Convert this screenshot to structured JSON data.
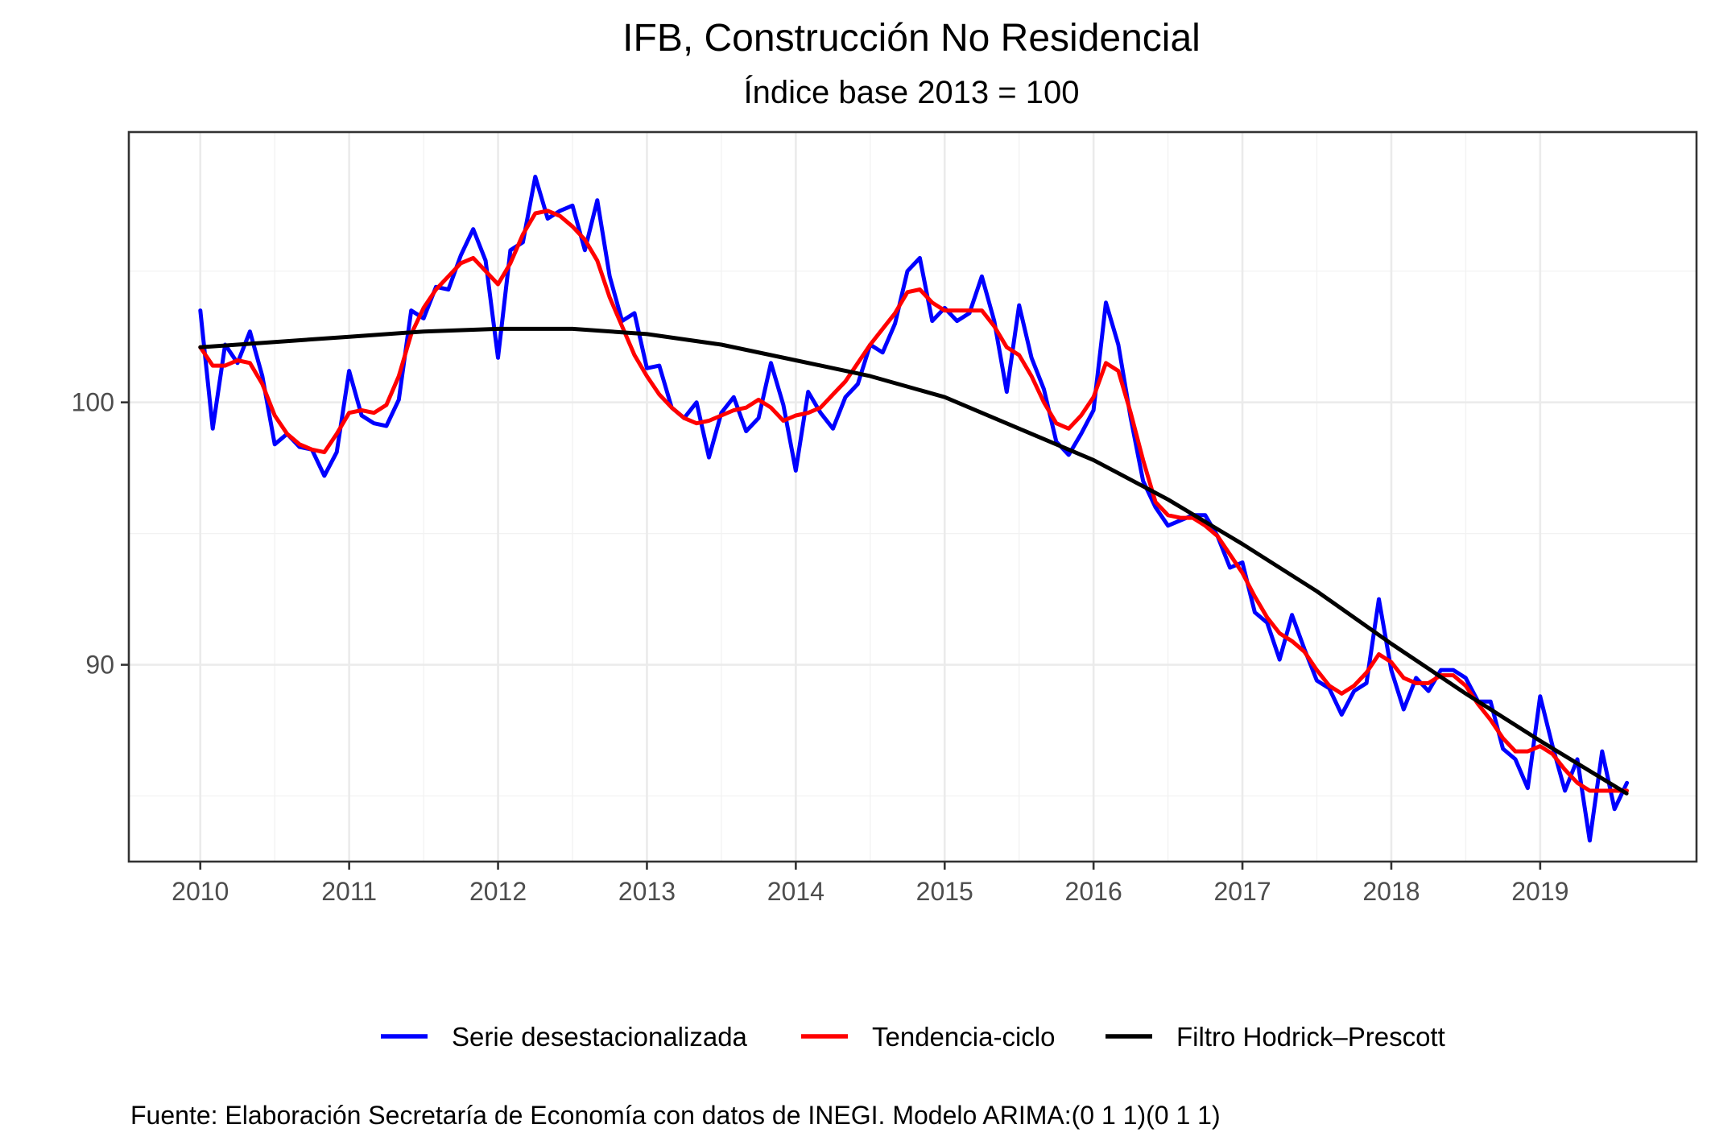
{
  "chart_data": {
    "type": "line",
    "title": "IFB, Construcción No Residencial",
    "subtitle": "Índice base 2013 = 100",
    "caption": "Fuente: Elaboración Secretaría de Economía con datos de INEGI. Modelo ARIMA:(0 1 1)(0 1 1)",
    "xlabel": "",
    "ylabel": "",
    "xlim": [
      2009.52,
      2020.05
    ],
    "ylim": [
      82.5,
      110.3
    ],
    "x_ticks": [
      2010,
      2011,
      2012,
      2013,
      2014,
      2015,
      2016,
      2017,
      2018,
      2019
    ],
    "x_tick_labels": [
      "2010",
      "2011",
      "2012",
      "2013",
      "2014",
      "2015",
      "2016",
      "2017",
      "2018",
      "2019"
    ],
    "y_ticks": [
      90,
      100
    ],
    "y_tick_labels": [
      "90",
      "100"
    ],
    "grid": true,
    "legend_position": "bottom",
    "x_start": 2010,
    "x_step": 0.08333,
    "series": [
      {
        "name": "Serie desestacionalizada",
        "color": "#0000ff",
        "values": [
          103.5,
          99.0,
          102.2,
          101.5,
          102.7,
          101.0,
          98.4,
          98.8,
          98.3,
          98.2,
          97.2,
          98.1,
          101.2,
          99.5,
          99.2,
          99.1,
          100.1,
          103.5,
          103.2,
          104.4,
          104.3,
          105.6,
          106.6,
          105.4,
          101.7,
          105.8,
          106.1,
          108.6,
          107.0,
          107.3,
          107.5,
          105.8,
          107.7,
          104.8,
          103.1,
          103.4,
          101.3,
          101.4,
          99.8,
          99.4,
          100.0,
          97.9,
          99.6,
          100.2,
          98.9,
          99.4,
          101.5,
          99.9,
          97.4,
          100.4,
          99.6,
          99.0,
          100.2,
          100.7,
          102.2,
          101.9,
          103.0,
          105.0,
          105.5,
          103.1,
          103.6,
          103.1,
          103.4,
          104.8,
          103.1,
          100.4,
          103.7,
          101.7,
          100.5,
          98.5,
          98.0,
          98.8,
          99.7,
          103.8,
          102.2,
          99.4,
          97.0,
          96.0,
          95.3,
          95.5,
          95.7,
          95.7,
          94.9,
          93.7,
          93.9,
          92.0,
          91.6,
          90.2,
          91.9,
          90.6,
          89.4,
          89.1,
          88.1,
          89.0,
          89.3,
          92.5,
          89.8,
          88.3,
          89.5,
          89.0,
          89.8,
          89.8,
          89.5,
          88.6,
          88.6,
          86.8,
          86.4,
          85.3,
          88.8,
          86.9,
          85.2,
          86.4,
          83.3,
          86.7,
          84.5,
          85.5
        ]
      },
      {
        "name": "Tendencia-ciclo",
        "color": "#ff0000",
        "values": [
          102.1,
          101.4,
          101.4,
          101.6,
          101.5,
          100.7,
          99.5,
          98.8,
          98.4,
          98.2,
          98.1,
          98.8,
          99.6,
          99.7,
          99.6,
          99.9,
          101.0,
          102.6,
          103.6,
          104.3,
          104.8,
          105.3,
          105.5,
          105.0,
          104.5,
          105.3,
          106.4,
          107.2,
          107.3,
          107.1,
          106.7,
          106.2,
          105.4,
          104.0,
          102.9,
          101.8,
          101.0,
          100.3,
          99.8,
          99.4,
          99.2,
          99.3,
          99.5,
          99.7,
          99.8,
          100.1,
          99.8,
          99.3,
          99.5,
          99.6,
          99.8,
          100.3,
          100.8,
          101.5,
          102.2,
          102.8,
          103.4,
          104.2,
          104.3,
          103.8,
          103.5,
          103.5,
          103.5,
          103.5,
          102.9,
          102.1,
          101.8,
          101.0,
          100.0,
          99.2,
          99.0,
          99.5,
          100.2,
          101.5,
          101.2,
          99.6,
          97.8,
          96.2,
          95.7,
          95.6,
          95.6,
          95.3,
          94.9,
          94.2,
          93.5,
          92.6,
          91.8,
          91.2,
          90.9,
          90.5,
          89.8,
          89.2,
          88.9,
          89.2,
          89.7,
          90.4,
          90.1,
          89.5,
          89.3,
          89.3,
          89.6,
          89.6,
          89.2,
          88.5,
          87.9,
          87.2,
          86.7,
          86.7,
          86.9,
          86.6,
          86.0,
          85.5,
          85.2,
          85.2,
          85.2,
          85.2
        ]
      },
      {
        "name": "Filtro Hodrick–Prescott",
        "color": "#000000",
        "x": [
          2010.0,
          2010.5,
          2011.0,
          2011.5,
          2012.0,
          2012.5,
          2013.0,
          2013.5,
          2014.0,
          2014.5,
          2015.0,
          2015.5,
          2016.0,
          2016.5,
          2017.0,
          2017.5,
          2018.0,
          2018.5,
          2019.0,
          2019.58
        ],
        "values": [
          102.1,
          102.3,
          102.5,
          102.7,
          102.8,
          102.8,
          102.6,
          102.2,
          101.6,
          101.0,
          100.2,
          99.0,
          97.8,
          96.3,
          94.6,
          92.8,
          90.8,
          88.9,
          87.1,
          85.1
        ]
      }
    ]
  }
}
